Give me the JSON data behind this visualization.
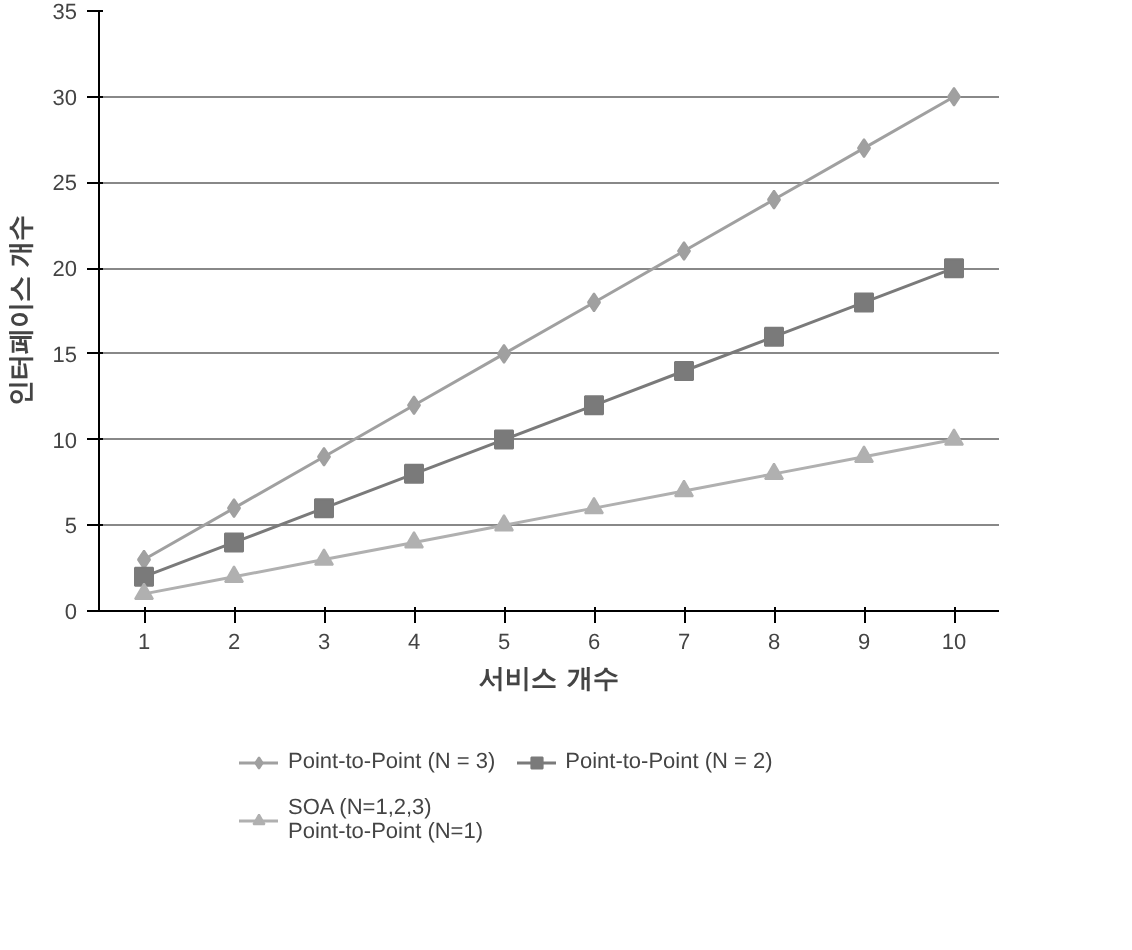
{
  "chart_data": {
    "type": "line",
    "xlabel": "서비스 개수",
    "ylabel": "인터페이스 개수",
    "categories": [
      "1",
      "2",
      "3",
      "4",
      "5",
      "6",
      "7",
      "8",
      "9",
      "10"
    ],
    "series": [
      {
        "name": "Point-to-Point (N = 3)",
        "color": "#a0a0a0",
        "marker": "diamond",
        "values": [
          3,
          6,
          9,
          12,
          15,
          18,
          21,
          24,
          27,
          30
        ]
      },
      {
        "name": "Point-to-Point (N = 2)",
        "color": "#7a7a7a",
        "marker": "square",
        "values": [
          2,
          4,
          6,
          8,
          10,
          12,
          14,
          16,
          18,
          20
        ]
      },
      {
        "name": "SOA (N=1,2,3)\nPoint-to-Point (N=1)",
        "color": "#b0b0b0",
        "marker": "triangle",
        "values": [
          1,
          2,
          3,
          4,
          5,
          6,
          7,
          8,
          9,
          10
        ]
      }
    ],
    "ylim": [
      0,
      35
    ],
    "yticks": [
      0,
      5,
      10,
      15,
      20,
      25,
      30,
      35
    ],
    "grid": "y",
    "legend": "bottom"
  }
}
